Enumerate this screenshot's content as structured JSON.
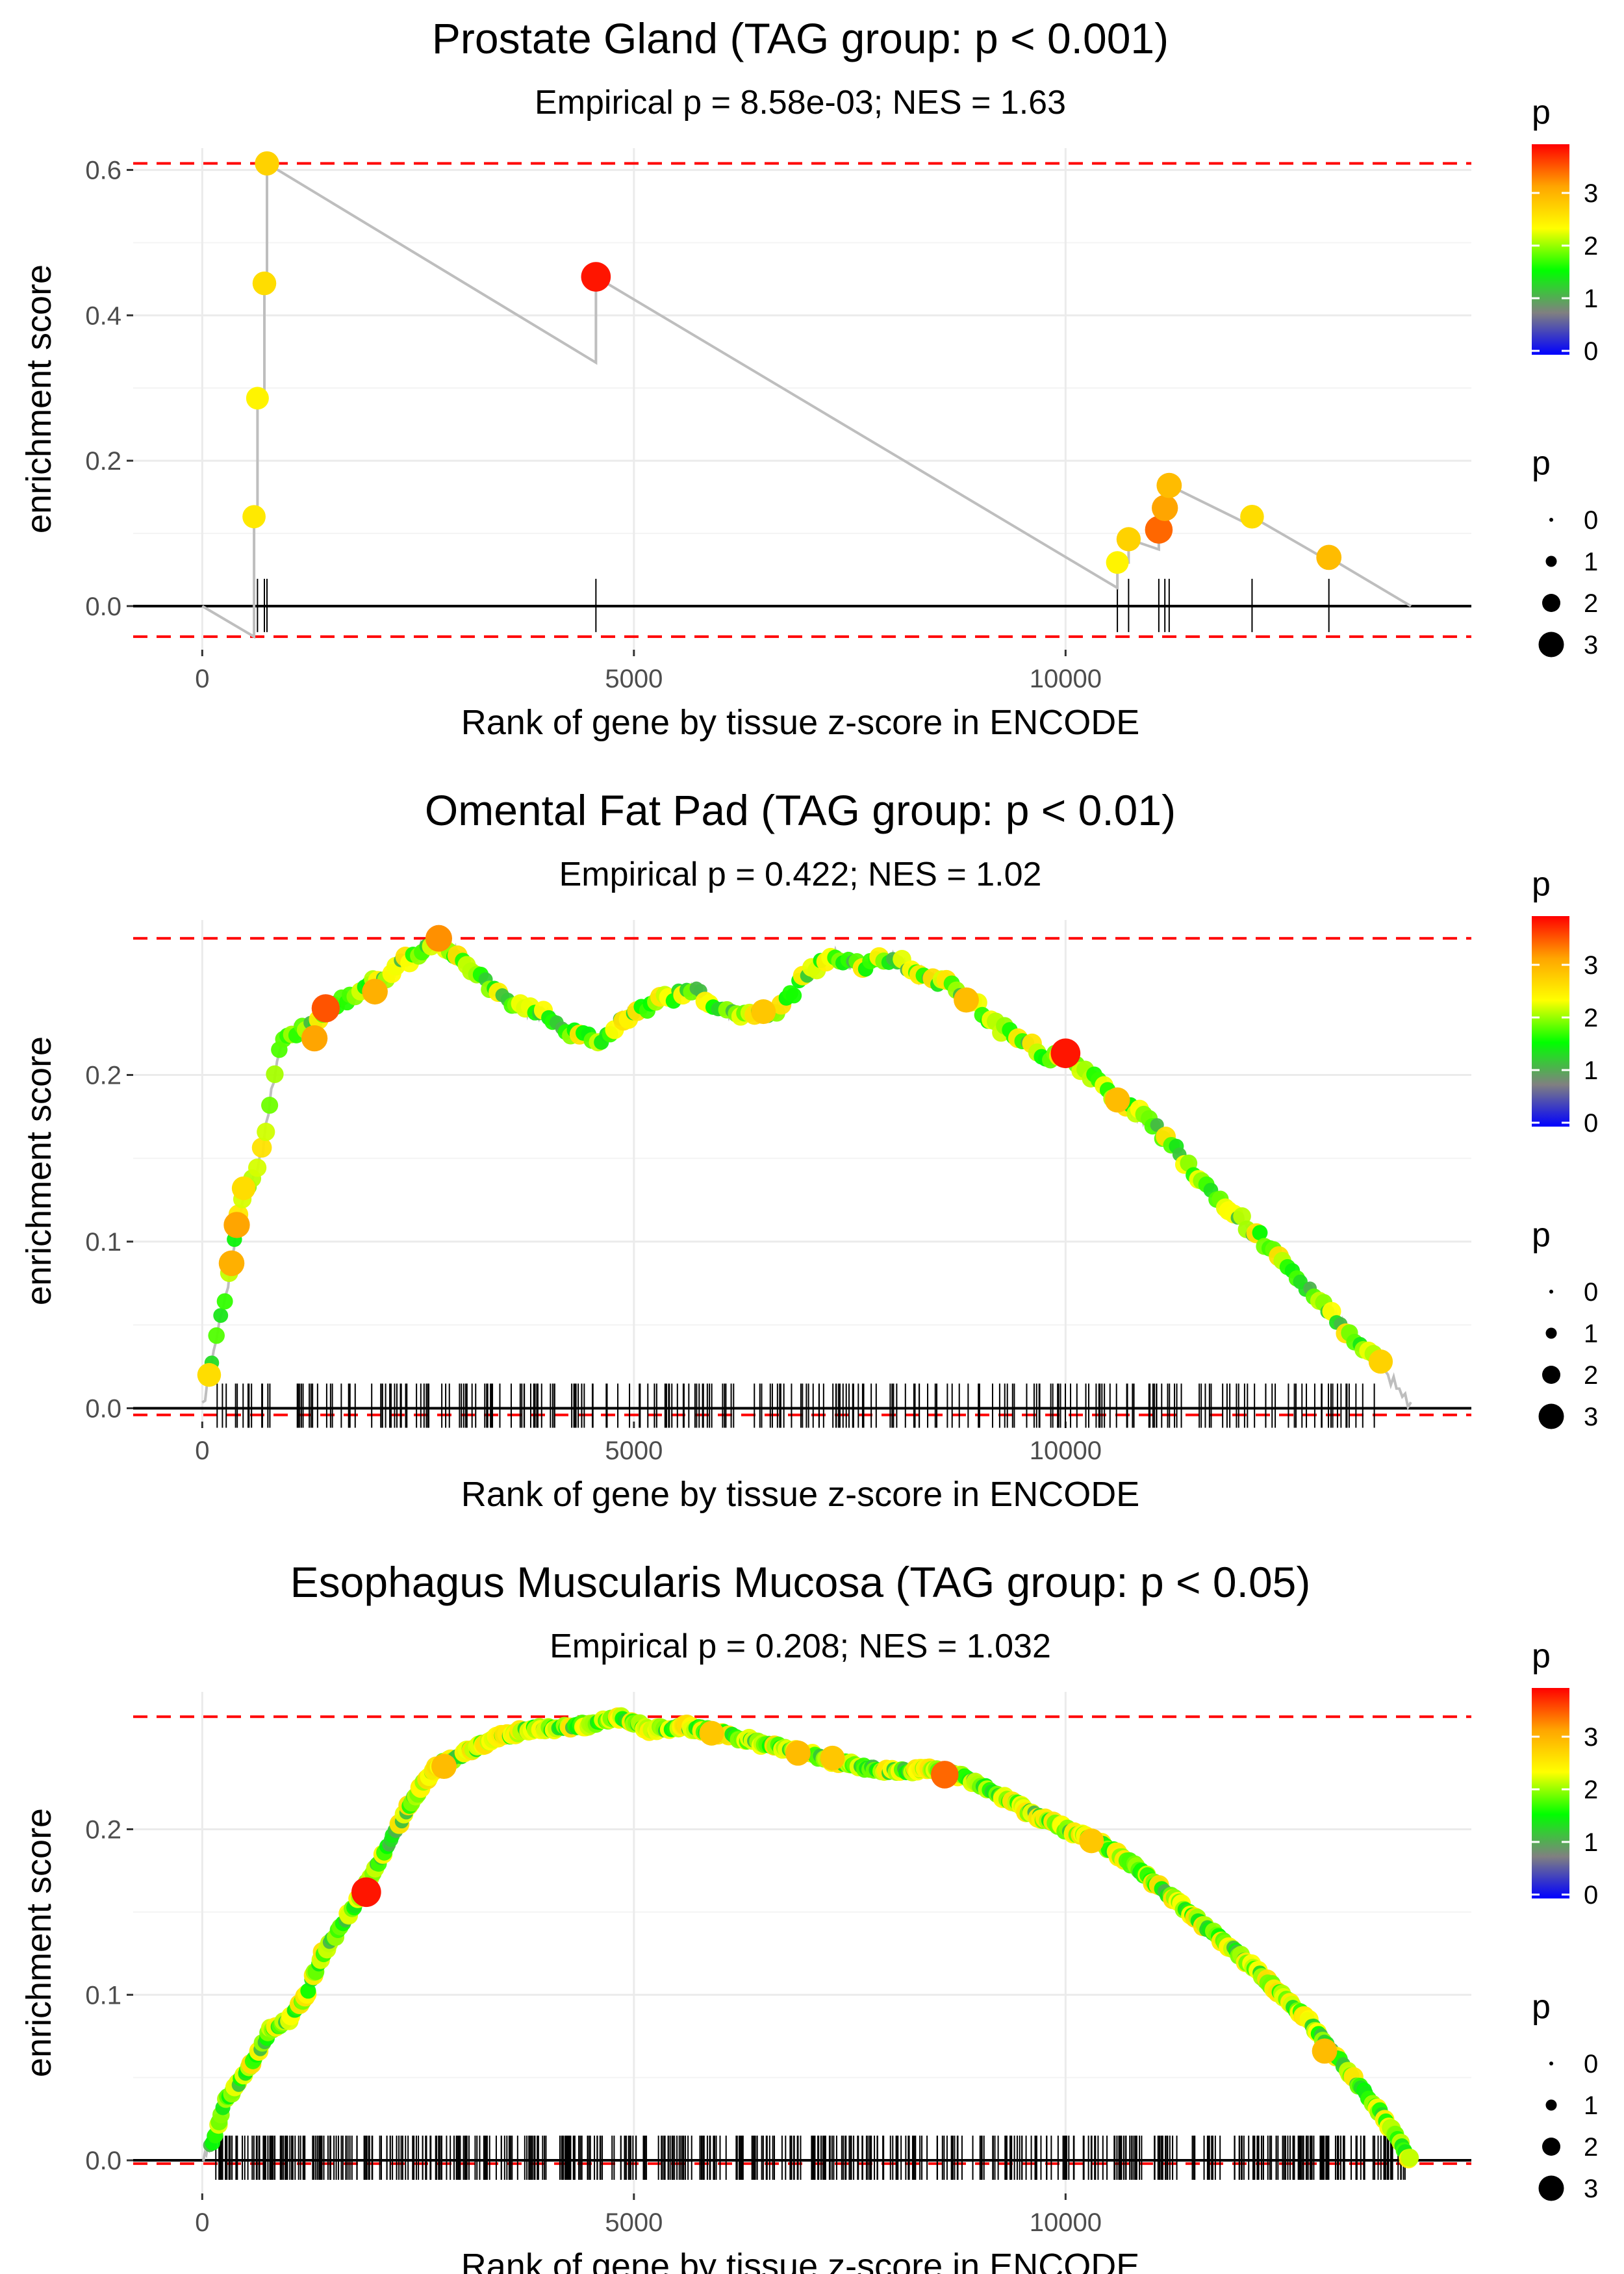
{
  "chart_data": [
    {
      "type": "scatter",
      "title": "Prostate Gland (TAG group: p < 0.001)",
      "subtitle": "Empirical p = 8.58e-03; NES = 1.63",
      "xlabel": "Rank of gene by tissue z-score in ENCODE",
      "ylabel": "enrichment score",
      "xlim": [
        -800,
        14700
      ],
      "ylim": [
        -0.06,
        0.63
      ],
      "xticks": [
        0,
        5000,
        10000
      ],
      "xtick_labels": [
        "0",
        "5000",
        "10000"
      ],
      "yticks": [
        0.0,
        0.2,
        0.4,
        0.6
      ],
      "ytick_labels": [
        "0.0",
        "0.2",
        "0.4",
        "0.6"
      ],
      "hlines": [
        0.609,
        -0.042
      ],
      "legend": {
        "color_title": "p",
        "color_ticks": [
          "0",
          "1",
          "2",
          "3"
        ],
        "size_title": "p",
        "size_labels": [
          "0",
          "1",
          "2",
          "3"
        ],
        "position": "right"
      },
      "gradient_colors": [
        "#0000ff",
        "#808080",
        "#00ff00",
        "#ffff00",
        "#ffa500",
        "#ff0000"
      ],
      "points": [
        {
          "x": 600,
          "y": 0.123,
          "p": 2.6
        },
        {
          "x": 640,
          "y": 0.286,
          "p": 2.5
        },
        {
          "x": 720,
          "y": 0.444,
          "p": 2.7
        },
        {
          "x": 750,
          "y": 0.609,
          "p": 2.8
        },
        {
          "x": 4560,
          "y": 0.453,
          "p": 3.9
        },
        {
          "x": 10600,
          "y": 0.06,
          "p": 2.5
        },
        {
          "x": 10730,
          "y": 0.092,
          "p": 2.8
        },
        {
          "x": 11080,
          "y": 0.105,
          "p": 3.5
        },
        {
          "x": 11150,
          "y": 0.135,
          "p": 3.2
        },
        {
          "x": 11200,
          "y": 0.166,
          "p": 3.0
        },
        {
          "x": 12160,
          "y": 0.123,
          "p": 2.7
        },
        {
          "x": 13050,
          "y": 0.067,
          "p": 3.0
        }
      ],
      "rug": [
        600,
        640,
        720,
        750,
        4560,
        10600,
        10730,
        11080,
        11150,
        11200,
        12160,
        13050
      ],
      "total_genes": 14000
    },
    {
      "type": "scatter",
      "title": "Omental Fat Pad (TAG group: p < 0.01)",
      "subtitle": "Empirical p = 0.422; NES = 1.02",
      "xlabel": "Rank of gene by tissue z-score in ENCODE",
      "ylabel": "enrichment score",
      "xlim": [
        -800,
        14700
      ],
      "ylim": [
        -0.008,
        0.293
      ],
      "xticks": [
        0,
        5000,
        10000
      ],
      "xtick_labels": [
        "0",
        "5000",
        "10000"
      ],
      "yticks": [
        0.0,
        0.1,
        0.2
      ],
      "ytick_labels": [
        "0.0",
        "0.1",
        "0.2"
      ],
      "hlines": [
        0.282,
        -0.004
      ],
      "legend": {
        "color_title": "p",
        "color_ticks": [
          "0",
          "1",
          "2",
          "3"
        ],
        "size_title": "p",
        "size_labels": [
          "0",
          "1",
          "2",
          "3"
        ],
        "position": "right"
      },
      "gradient_colors": [
        "#0000ff",
        "#808080",
        "#00ff00",
        "#ffff00",
        "#ffa500",
        "#ff0000"
      ],
      "curve": [
        [
          0,
          0.0
        ],
        [
          80,
          0.02
        ],
        [
          200,
          0.05
        ],
        [
          300,
          0.075
        ],
        [
          400,
          0.11
        ],
        [
          500,
          0.13
        ],
        [
          600,
          0.14
        ],
        [
          700,
          0.155
        ],
        [
          800,
          0.19
        ],
        [
          900,
          0.215
        ],
        [
          1000,
          0.225
        ],
        [
          1300,
          0.23
        ],
        [
          1500,
          0.24
        ],
        [
          1800,
          0.25
        ],
        [
          2100,
          0.258
        ],
        [
          2400,
          0.27
        ],
        [
          2700,
          0.282
        ],
        [
          3000,
          0.27
        ],
        [
          3300,
          0.255
        ],
        [
          3700,
          0.24
        ],
        [
          4000,
          0.235
        ],
        [
          4300,
          0.225
        ],
        [
          4600,
          0.22
        ],
        [
          4900,
          0.235
        ],
        [
          5300,
          0.245
        ],
        [
          5700,
          0.25
        ],
        [
          6000,
          0.24
        ],
        [
          6400,
          0.235
        ],
        [
          6700,
          0.24
        ],
        [
          7000,
          0.26
        ],
        [
          7300,
          0.272
        ],
        [
          7600,
          0.265
        ],
        [
          8000,
          0.27
        ],
        [
          8300,
          0.26
        ],
        [
          8600,
          0.255
        ],
        [
          8900,
          0.245
        ],
        [
          9200,
          0.23
        ],
        [
          9500,
          0.22
        ],
        [
          9800,
          0.21
        ],
        [
          10000,
          0.212
        ],
        [
          10300,
          0.2
        ],
        [
          10600,
          0.185
        ],
        [
          10900,
          0.175
        ],
        [
          11200,
          0.16
        ],
        [
          11500,
          0.14
        ],
        [
          11800,
          0.125
        ],
        [
          12100,
          0.11
        ],
        [
          12400,
          0.095
        ],
        [
          12700,
          0.078
        ],
        [
          13000,
          0.06
        ],
        [
          13300,
          0.045
        ],
        [
          13600,
          0.03
        ],
        [
          14000,
          0.0
        ]
      ],
      "highlights": [
        {
          "x": 80,
          "y": 0.02,
          "p": 2.7
        },
        {
          "x": 400,
          "y": 0.11,
          "p": 3.2
        },
        {
          "x": 340,
          "y": 0.087,
          "p": 3.1
        },
        {
          "x": 480,
          "y": 0.132,
          "p": 2.7
        },
        {
          "x": 1300,
          "y": 0.222,
          "p": 3.2
        },
        {
          "x": 1430,
          "y": 0.24,
          "p": 3.6
        },
        {
          "x": 2000,
          "y": 0.25,
          "p": 3.1
        },
        {
          "x": 2740,
          "y": 0.282,
          "p": 3.3
        },
        {
          "x": 6500,
          "y": 0.238,
          "p": 2.9
        },
        {
          "x": 8850,
          "y": 0.245,
          "p": 3.0
        },
        {
          "x": 10000,
          "y": 0.213,
          "p": 3.9
        },
        {
          "x": 10600,
          "y": 0.185,
          "p": 3.0
        },
        {
          "x": 13650,
          "y": 0.028,
          "p": 2.8
        }
      ],
      "rug_range": [
        100,
        13600
      ],
      "rug_count": 260,
      "total_genes": 14000
    },
    {
      "type": "scatter",
      "title": "Esophagus Muscularis Mucosa (TAG group: p < 0.05)",
      "subtitle": "Empirical p = 0.208; NES = 1.032",
      "xlabel": "Rank of gene by tissue z-score in ENCODE",
      "ylabel": "enrichment score",
      "xlim": [
        -800,
        14700
      ],
      "ylim": [
        -0.02,
        0.283
      ],
      "xticks": [
        0,
        5000,
        10000
      ],
      "xtick_labels": [
        "0",
        "5000",
        "10000"
      ],
      "yticks": [
        0.0,
        0.1,
        0.2
      ],
      "ytick_labels": [
        "0.0",
        "0.1",
        "0.2"
      ],
      "hlines": [
        0.268,
        -0.002
      ],
      "legend": {
        "color_title": "p",
        "color_ticks": [
          "0",
          "1",
          "2",
          "3"
        ],
        "size_title": "p",
        "size_labels": [
          "0",
          "1",
          "2",
          "3"
        ],
        "position": "right"
      },
      "gradient_colors": [
        "#0000ff",
        "#808080",
        "#00ff00",
        "#ffff00",
        "#ffa500",
        "#ff0000"
      ],
      "curve": [
        [
          0,
          0.0
        ],
        [
          150,
          0.015
        ],
        [
          250,
          0.035
        ],
        [
          400,
          0.045
        ],
        [
          600,
          0.06
        ],
        [
          800,
          0.08
        ],
        [
          1000,
          0.085
        ],
        [
          1200,
          0.1
        ],
        [
          1400,
          0.125
        ],
        [
          1600,
          0.14
        ],
        [
          1850,
          0.162
        ],
        [
          2100,
          0.185
        ],
        [
          2400,
          0.215
        ],
        [
          2700,
          0.238
        ],
        [
          3000,
          0.245
        ],
        [
          3400,
          0.255
        ],
        [
          3800,
          0.26
        ],
        [
          4200,
          0.262
        ],
        [
          4600,
          0.264
        ],
        [
          4850,
          0.268
        ],
        [
          5200,
          0.26
        ],
        [
          5600,
          0.262
        ],
        [
          6000,
          0.258
        ],
        [
          6400,
          0.253
        ],
        [
          6800,
          0.248
        ],
        [
          7200,
          0.243
        ],
        [
          7600,
          0.238
        ],
        [
          8000,
          0.235
        ],
        [
          8400,
          0.236
        ],
        [
          8800,
          0.232
        ],
        [
          9200,
          0.222
        ],
        [
          9600,
          0.21
        ],
        [
          10000,
          0.2
        ],
        [
          10400,
          0.192
        ],
        [
          10800,
          0.178
        ],
        [
          11200,
          0.16
        ],
        [
          11600,
          0.142
        ],
        [
          12000,
          0.125
        ],
        [
          12400,
          0.105
        ],
        [
          12800,
          0.085
        ],
        [
          13100,
          0.065
        ],
        [
          13400,
          0.045
        ],
        [
          13700,
          0.025
        ],
        [
          14000,
          0.0
        ]
      ],
      "highlights": [
        {
          "x": 1900,
          "y": 0.162,
          "p": 3.9
        },
        {
          "x": 2800,
          "y": 0.238,
          "p": 3.0
        },
        {
          "x": 5900,
          "y": 0.258,
          "p": 2.9
        },
        {
          "x": 6900,
          "y": 0.246,
          "p": 3.0
        },
        {
          "x": 7300,
          "y": 0.243,
          "p": 2.9
        },
        {
          "x": 8600,
          "y": 0.233,
          "p": 3.5
        },
        {
          "x": 10300,
          "y": 0.193,
          "p": 2.9
        },
        {
          "x": 13000,
          "y": 0.066,
          "p": 3.0
        }
      ],
      "rug_range": [
        80,
        14000
      ],
      "rug_count": 560,
      "total_genes": 14000
    }
  ]
}
